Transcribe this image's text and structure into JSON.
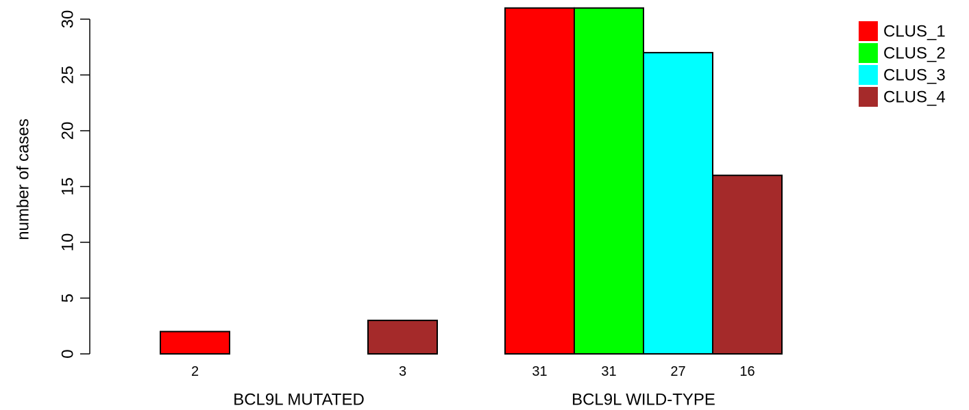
{
  "chart_data": {
    "type": "bar",
    "ylabel": "number of cases",
    "ylim": [
      0,
      31
    ],
    "yticks": [
      0,
      5,
      10,
      15,
      20,
      25,
      30
    ],
    "groups": [
      "BCL9L MUTATED",
      "BCL9L WILD-TYPE"
    ],
    "series": [
      {
        "name": "CLUS_1",
        "color": "#ff0000",
        "values": [
          2,
          31
        ]
      },
      {
        "name": "CLUS_2",
        "color": "#00ff00",
        "values": [
          0,
          31
        ]
      },
      {
        "name": "CLUS_3",
        "color": "#00ffff",
        "values": [
          0,
          27
        ]
      },
      {
        "name": "CLUS_4",
        "color": "#a52a2a",
        "values": [
          3,
          16
        ]
      }
    ],
    "data_labels": [
      [
        "2",
        "",
        "",
        "3"
      ],
      [
        "31",
        "31",
        "27",
        "16"
      ]
    ],
    "legend_position": "top-right",
    "grid": false
  }
}
